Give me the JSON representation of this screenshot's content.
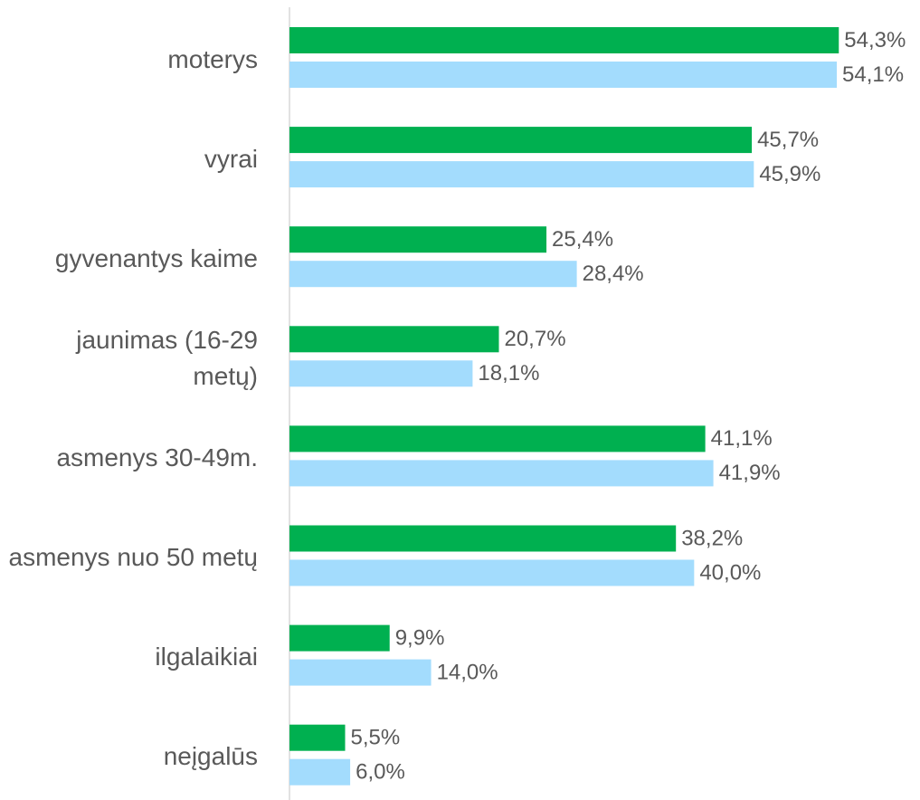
{
  "chart_data": {
    "type": "barh",
    "categories": [
      "moterys",
      "vyrai",
      "gyvenantys kaime",
      "jaunimas (16-29 metų)",
      "asmenys 30-49m.",
      "asmenys nuo 50 metų",
      "ilgalaikiai",
      "neįgalūs"
    ],
    "series": [
      {
        "color": "#00b050",
        "values": [
          54.3,
          45.7,
          25.4,
          20.7,
          41.1,
          38.2,
          9.9,
          5.5
        ],
        "value_labels": [
          "54,3%",
          "45,7%",
          "25,4%",
          "20,7%",
          "41,1%",
          "38,2%",
          "9,9%",
          "5,5%"
        ]
      },
      {
        "color": "#a3dcfd",
        "values": [
          54.1,
          45.9,
          28.4,
          18.1,
          41.9,
          40.0,
          14.0,
          6.0
        ],
        "value_labels": [
          "54,1%",
          "45,9%",
          "28,4%",
          "18,1%",
          "41,9%",
          "40,0%",
          "14,0%",
          "6,0%"
        ]
      }
    ],
    "xlim": [
      0,
      60
    ]
  }
}
